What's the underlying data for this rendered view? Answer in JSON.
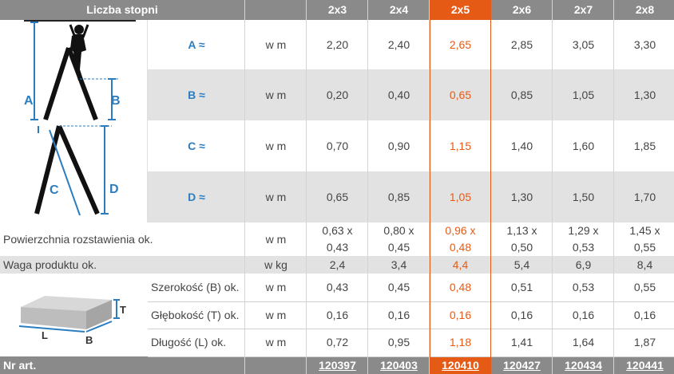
{
  "header": {
    "title": "Liczba stopni",
    "sizes": [
      "2x3",
      "2x4",
      "2x5",
      "2x6",
      "2x7",
      "2x8"
    ]
  },
  "highlight": {
    "color": "#e55b16",
    "column": "2x5"
  },
  "diagram_letters": {
    "a": "A",
    "b": "B",
    "c": "C",
    "d": "D",
    "box_t": "T",
    "box_l": "L",
    "box_b": "B"
  },
  "rows": {
    "A": {
      "label": "A ≈",
      "unit": "w m",
      "values": [
        "2,20",
        "2,40",
        "2,65",
        "2,85",
        "3,05",
        "3,30"
      ]
    },
    "B": {
      "label": "B ≈",
      "unit": "w m",
      "values": [
        "0,20",
        "0,40",
        "0,65",
        "0,85",
        "1,05",
        "1,30"
      ]
    },
    "C": {
      "label": "C ≈",
      "unit": "w m",
      "values": [
        "0,70",
        "0,90",
        "1,15",
        "1,40",
        "1,60",
        "1,85"
      ]
    },
    "D": {
      "label": "D ≈",
      "unit": "w m",
      "values": [
        "0,65",
        "0,85",
        "1,05",
        "1,30",
        "1,50",
        "1,70"
      ]
    },
    "area": {
      "label": "Powierzchnia rozstawienia ok.",
      "unit": "w m",
      "values": [
        [
          "0,63 x",
          "0,43"
        ],
        [
          "0,80 x",
          "0,45"
        ],
        [
          "0,96 x",
          "0,48"
        ],
        [
          "1,13 x",
          "0,50"
        ],
        [
          "1,29 x",
          "0,53"
        ],
        [
          "1,45 x",
          "0,55"
        ]
      ]
    },
    "weight": {
      "label": "Waga produktu ok.",
      "unit": "w kg",
      "values": [
        "2,4",
        "3,4",
        "4,4",
        "5,4",
        "6,9",
        "8,4"
      ]
    },
    "width": {
      "label": "Szerokość (B) ok.",
      "unit": "w m",
      "values": [
        "0,43",
        "0,45",
        "0,48",
        "0,51",
        "0,53",
        "0,55"
      ]
    },
    "depth": {
      "label": "Głębokość (T) ok.",
      "unit": "w m",
      "values": [
        "0,16",
        "0,16",
        "0,16",
        "0,16",
        "0,16",
        "0,16"
      ]
    },
    "length": {
      "label": "Długość (L) ok.",
      "unit": "w m",
      "values": [
        "0,72",
        "0,95",
        "1,18",
        "1,41",
        "1,64",
        "1,87"
      ]
    }
  },
  "footer": {
    "label": "Nr art.",
    "articles": [
      "120397",
      "120403",
      "120410",
      "120427",
      "120434",
      "120441"
    ]
  }
}
